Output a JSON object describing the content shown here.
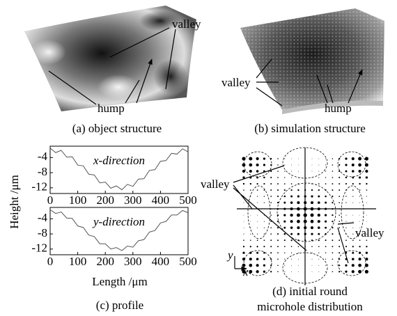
{
  "panel_a": {
    "caption": "(a) object structure",
    "valley_label": "valley",
    "hump_label": "hump"
  },
  "panel_b": {
    "caption": "(b) simulation structure",
    "valley_label": "valley",
    "hump_label": "hump"
  },
  "panel_c": {
    "caption": "(c) profile",
    "ylabel": "Height /μm",
    "xlabel": "Length /μm",
    "charts": [
      {
        "type": "line",
        "label": "x-direction",
        "color": "#555555",
        "x": [
          0,
          20,
          40,
          60,
          80,
          100,
          120,
          140,
          160,
          180,
          200,
          220,
          240,
          260,
          280,
          300,
          320,
          340,
          360,
          380,
          400,
          420,
          440,
          460,
          480,
          500
        ],
        "values": [
          -1.5,
          -2.7,
          -2.1,
          -3.9,
          -3.8,
          -6.0,
          -6.2,
          -8.4,
          -8.6,
          -10.7,
          -10.5,
          -12.1,
          -11.5,
          -12.5,
          -11.1,
          -11.6,
          -9.7,
          -9.6,
          -7.4,
          -7.2,
          -5.0,
          -4.8,
          -2.9,
          -3.1,
          -1.7,
          -2.5
        ],
        "xlim": [
          0,
          500
        ],
        "ylim": [
          -13.5,
          -1
        ],
        "xticks": [
          0,
          100,
          200,
          300,
          400,
          500
        ],
        "yticks": [
          -4,
          -8,
          -12
        ]
      },
      {
        "type": "line",
        "label": "y-direction",
        "color": "#555555",
        "x": [
          0,
          20,
          40,
          60,
          80,
          100,
          120,
          140,
          160,
          180,
          200,
          220,
          240,
          260,
          280,
          300,
          320,
          340,
          360,
          380,
          400,
          420,
          440,
          460,
          480,
          500
        ],
        "values": [
          -1.6,
          -2.6,
          -2.2,
          -3.8,
          -3.9,
          -5.9,
          -6.3,
          -8.3,
          -8.7,
          -10.6,
          -10.6,
          -12.0,
          -11.6,
          -12.4,
          -11.2,
          -11.5,
          -9.8,
          -9.5,
          -7.5,
          -7.1,
          -5.1,
          -4.7,
          -3.0,
          -3.0,
          -1.8,
          -2.4
        ],
        "xlim": [
          0,
          500
        ],
        "ylim": [
          -13.5,
          -1
        ],
        "xticks": [
          0,
          100,
          200,
          300,
          400,
          500
        ],
        "yticks": [
          -4,
          -8,
          -12
        ]
      }
    ]
  },
  "panel_d": {
    "caption_line1": "(d) initial round",
    "caption_line2": "microhole distribution",
    "valley_label_left": "valley",
    "valley_label_right": "valley",
    "axis_y": "y",
    "axis_x": "x"
  }
}
